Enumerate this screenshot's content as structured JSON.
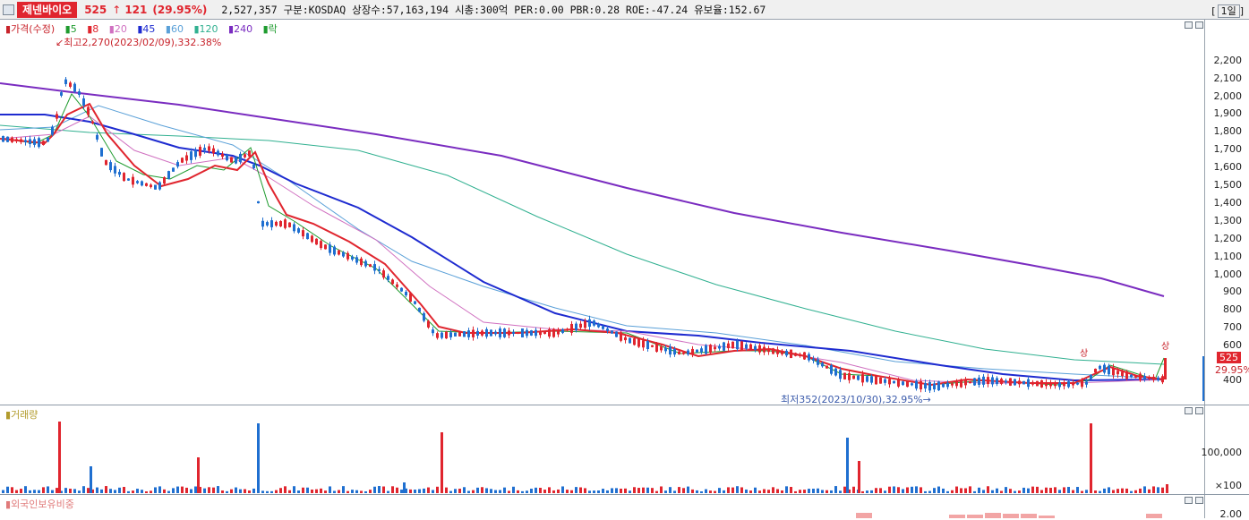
{
  "header": {
    "stock_name": "제넨바이오",
    "price": "525",
    "change_arrow": "↑",
    "change": "121",
    "change_pct": "(29.95%)",
    "info": "2,527,357  구분:KOSDAQ 상장수:57,163,194 시총:300억  PER:0.00 PBR:0.28 ROE:-47.24 유보율:152.67",
    "period": "1일"
  },
  "price_panel": {
    "legend": [
      {
        "label": "가격(수정)",
        "color": "#c8232b"
      },
      {
        "label": "5",
        "color": "#1e9b2e"
      },
      {
        "label": "8",
        "color": "#e0252e"
      },
      {
        "label": "20",
        "color": "#d070c0"
      },
      {
        "label": "45",
        "color": "#1e2bd0"
      },
      {
        "label": "60",
        "color": "#5aa0d8"
      },
      {
        "label": "120",
        "color": "#30b090"
      },
      {
        "label": "240",
        "color": "#7a2cc0"
      },
      {
        "label": "락",
        "color": "#1e9b2e"
      }
    ],
    "high_note": "최고2,270(2023/02/09),332.38%",
    "low_note": "최저352(2023/10/30),32.95%",
    "upper_limit_label": "상",
    "current_price_badge": "525",
    "current_pct_badge": "29.95%",
    "y_ticks": [
      "2,200",
      "2,100",
      "2,000",
      "1,900",
      "1,800",
      "1,700",
      "1,600",
      "1,500",
      "1,400",
      "1,300",
      "1,200",
      "1,100",
      "1,000",
      "900",
      "800",
      "700",
      "600",
      "500",
      "400"
    ]
  },
  "volume_panel": {
    "title": "거래량",
    "y_ticks": [
      "100,000",
      "×100"
    ]
  },
  "foreign_panel": {
    "title": "외국인보유비중",
    "y_ticks": [
      "2.00"
    ]
  },
  "colors": {
    "up": "#e0252e",
    "down": "#1f6fd0",
    "ma240": "#7a2cc0",
    "ma120": "#30b090",
    "ma45": "#1e2bd0"
  }
}
